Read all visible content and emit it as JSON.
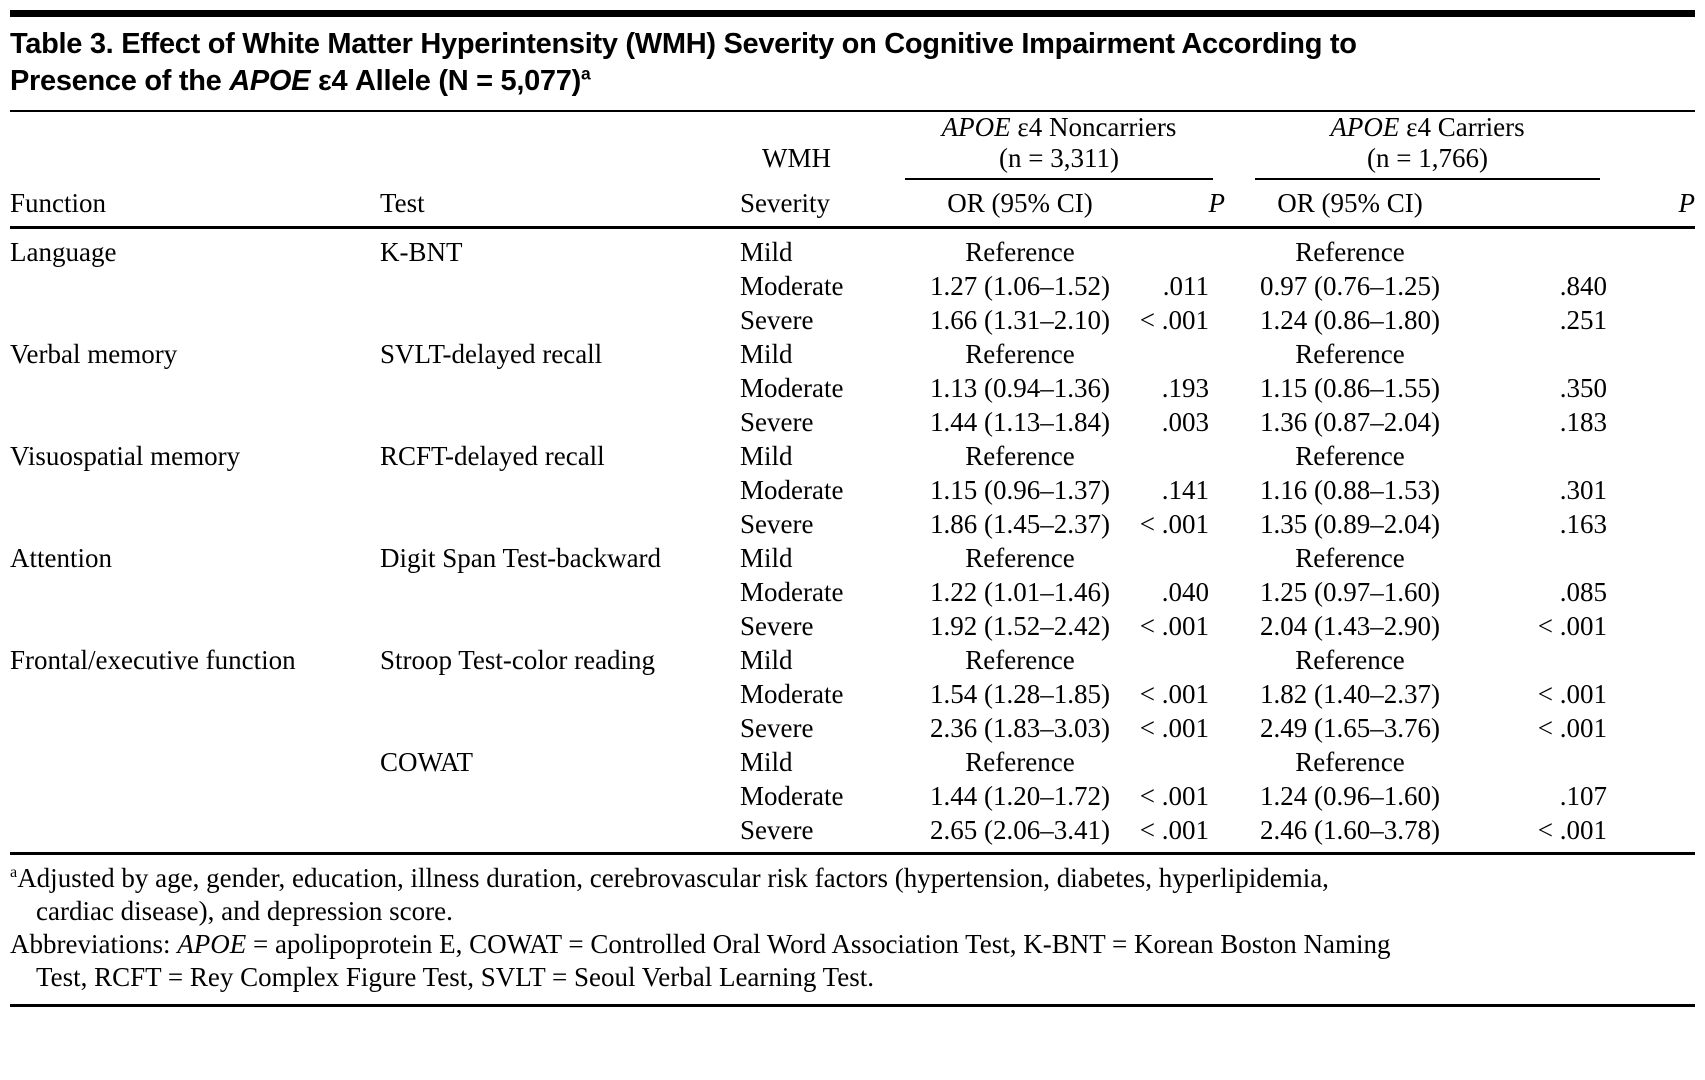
{
  "title": {
    "line1": "Table 3. Effect of White Matter Hyperintensity (WMH) Severity on Cognitive Impairment According to",
    "line2_pre": "Presence of the ",
    "line2_italic": "APOE",
    "line2_post": " ε4 Allele (N = 5,077)",
    "sup": "a"
  },
  "columns": {
    "function": "Function",
    "test": "Test",
    "severity_line1": "WMH",
    "severity_line2": "Severity",
    "or_label": "OR (95% CI)",
    "p_label": "P",
    "group1": {
      "italic": "APOE",
      "rest": " ε4 Noncarriers",
      "n": "(n = 3,311)"
    },
    "group2": {
      "italic": "APOE",
      "rest": " ε4 Carriers",
      "n": "(n = 1,766)"
    }
  },
  "rows": [
    {
      "function": "Language",
      "test": "K-BNT",
      "severity": "Mild",
      "noncarrier_or": "Reference",
      "noncarrier_p": "",
      "carrier_or": "Reference",
      "carrier_p": ""
    },
    {
      "function": "",
      "test": "",
      "severity": "Moderate",
      "noncarrier_or": "1.27 (1.06–1.52)",
      "noncarrier_p": ".011",
      "carrier_or": "0.97 (0.76–1.25)",
      "carrier_p": ".840"
    },
    {
      "function": "",
      "test": "",
      "severity": "Severe",
      "noncarrier_or": "1.66 (1.31–2.10)",
      "noncarrier_p": "< .001",
      "carrier_or": "1.24 (0.86–1.80)",
      "carrier_p": ".251"
    },
    {
      "function": "Verbal memory",
      "test": "SVLT-delayed recall",
      "severity": "Mild",
      "noncarrier_or": "Reference",
      "noncarrier_p": "",
      "carrier_or": "Reference",
      "carrier_p": ""
    },
    {
      "function": "",
      "test": "",
      "severity": "Moderate",
      "noncarrier_or": "1.13 (0.94–1.36)",
      "noncarrier_p": ".193",
      "carrier_or": "1.15 (0.86–1.55)",
      "carrier_p": ".350"
    },
    {
      "function": "",
      "test": "",
      "severity": "Severe",
      "noncarrier_or": "1.44 (1.13–1.84)",
      "noncarrier_p": ".003",
      "carrier_or": "1.36 (0.87–2.04)",
      "carrier_p": ".183"
    },
    {
      "function": "Visuospatial memory",
      "test": "RCFT-delayed recall",
      "severity": "Mild",
      "noncarrier_or": "Reference",
      "noncarrier_p": "",
      "carrier_or": "Reference",
      "carrier_p": ""
    },
    {
      "function": "",
      "test": "",
      "severity": "Moderate",
      "noncarrier_or": "1.15 (0.96–1.37)",
      "noncarrier_p": ".141",
      "carrier_or": "1.16 (0.88–1.53)",
      "carrier_p": ".301"
    },
    {
      "function": "",
      "test": "",
      "severity": "Severe",
      "noncarrier_or": "1.86 (1.45–2.37)",
      "noncarrier_p": "< .001",
      "carrier_or": "1.35 (0.89–2.04)",
      "carrier_p": ".163"
    },
    {
      "function": "Attention",
      "test": "Digit Span Test-backward",
      "severity": "Mild",
      "noncarrier_or": "Reference",
      "noncarrier_p": "",
      "carrier_or": "Reference",
      "carrier_p": ""
    },
    {
      "function": "",
      "test": "",
      "severity": "Moderate",
      "noncarrier_or": "1.22 (1.01–1.46)",
      "noncarrier_p": ".040",
      "carrier_or": "1.25 (0.97–1.60)",
      "carrier_p": ".085"
    },
    {
      "function": "",
      "test": "",
      "severity": "Severe",
      "noncarrier_or": "1.92 (1.52–2.42)",
      "noncarrier_p": "< .001",
      "carrier_or": "2.04 (1.43–2.90)",
      "carrier_p": "< .001"
    },
    {
      "function": "Frontal/executive function",
      "test": "Stroop Test-color reading",
      "severity": "Mild",
      "noncarrier_or": "Reference",
      "noncarrier_p": "",
      "carrier_or": "Reference",
      "carrier_p": ""
    },
    {
      "function": "",
      "test": "",
      "severity": "Moderate",
      "noncarrier_or": "1.54 (1.28–1.85)",
      "noncarrier_p": "< .001",
      "carrier_or": "1.82 (1.40–2.37)",
      "carrier_p": "< .001"
    },
    {
      "function": "",
      "test": "",
      "severity": "Severe",
      "noncarrier_or": "2.36 (1.83–3.03)",
      "noncarrier_p": "< .001",
      "carrier_or": "2.49 (1.65–3.76)",
      "carrier_p": "< .001"
    },
    {
      "function": "",
      "test": "COWAT",
      "severity": "Mild",
      "noncarrier_or": "Reference",
      "noncarrier_p": "",
      "carrier_or": "Reference",
      "carrier_p": ""
    },
    {
      "function": "",
      "test": "",
      "severity": "Moderate",
      "noncarrier_or": "1.44 (1.20–1.72)",
      "noncarrier_p": "< .001",
      "carrier_or": "1.24 (0.96–1.60)",
      "carrier_p": ".107"
    },
    {
      "function": "",
      "test": "",
      "severity": "Severe",
      "noncarrier_or": "2.65 (2.06–3.41)",
      "noncarrier_p": "< .001",
      "carrier_or": "2.46 (1.60–3.78)",
      "carrier_p": "< .001"
    }
  ],
  "footnotes": {
    "a": {
      "sup": "a",
      "line1": "Adjusted by age, gender, education, illness duration, cerebrovascular risk factors (hypertension, diabetes, hyperlipidemia,",
      "line2": "cardiac disease), and depression score."
    },
    "abbr": {
      "label": "Abbreviations: ",
      "italic": "APOE",
      "line1_rest": " = apolipoprotein E, COWAT = Controlled Oral Word Association Test, K-BNT = Korean Boston Naming",
      "line2": "Test, RCFT = Rey Complex Figure Test, SVLT = Seoul Verbal Learning Test."
    }
  }
}
